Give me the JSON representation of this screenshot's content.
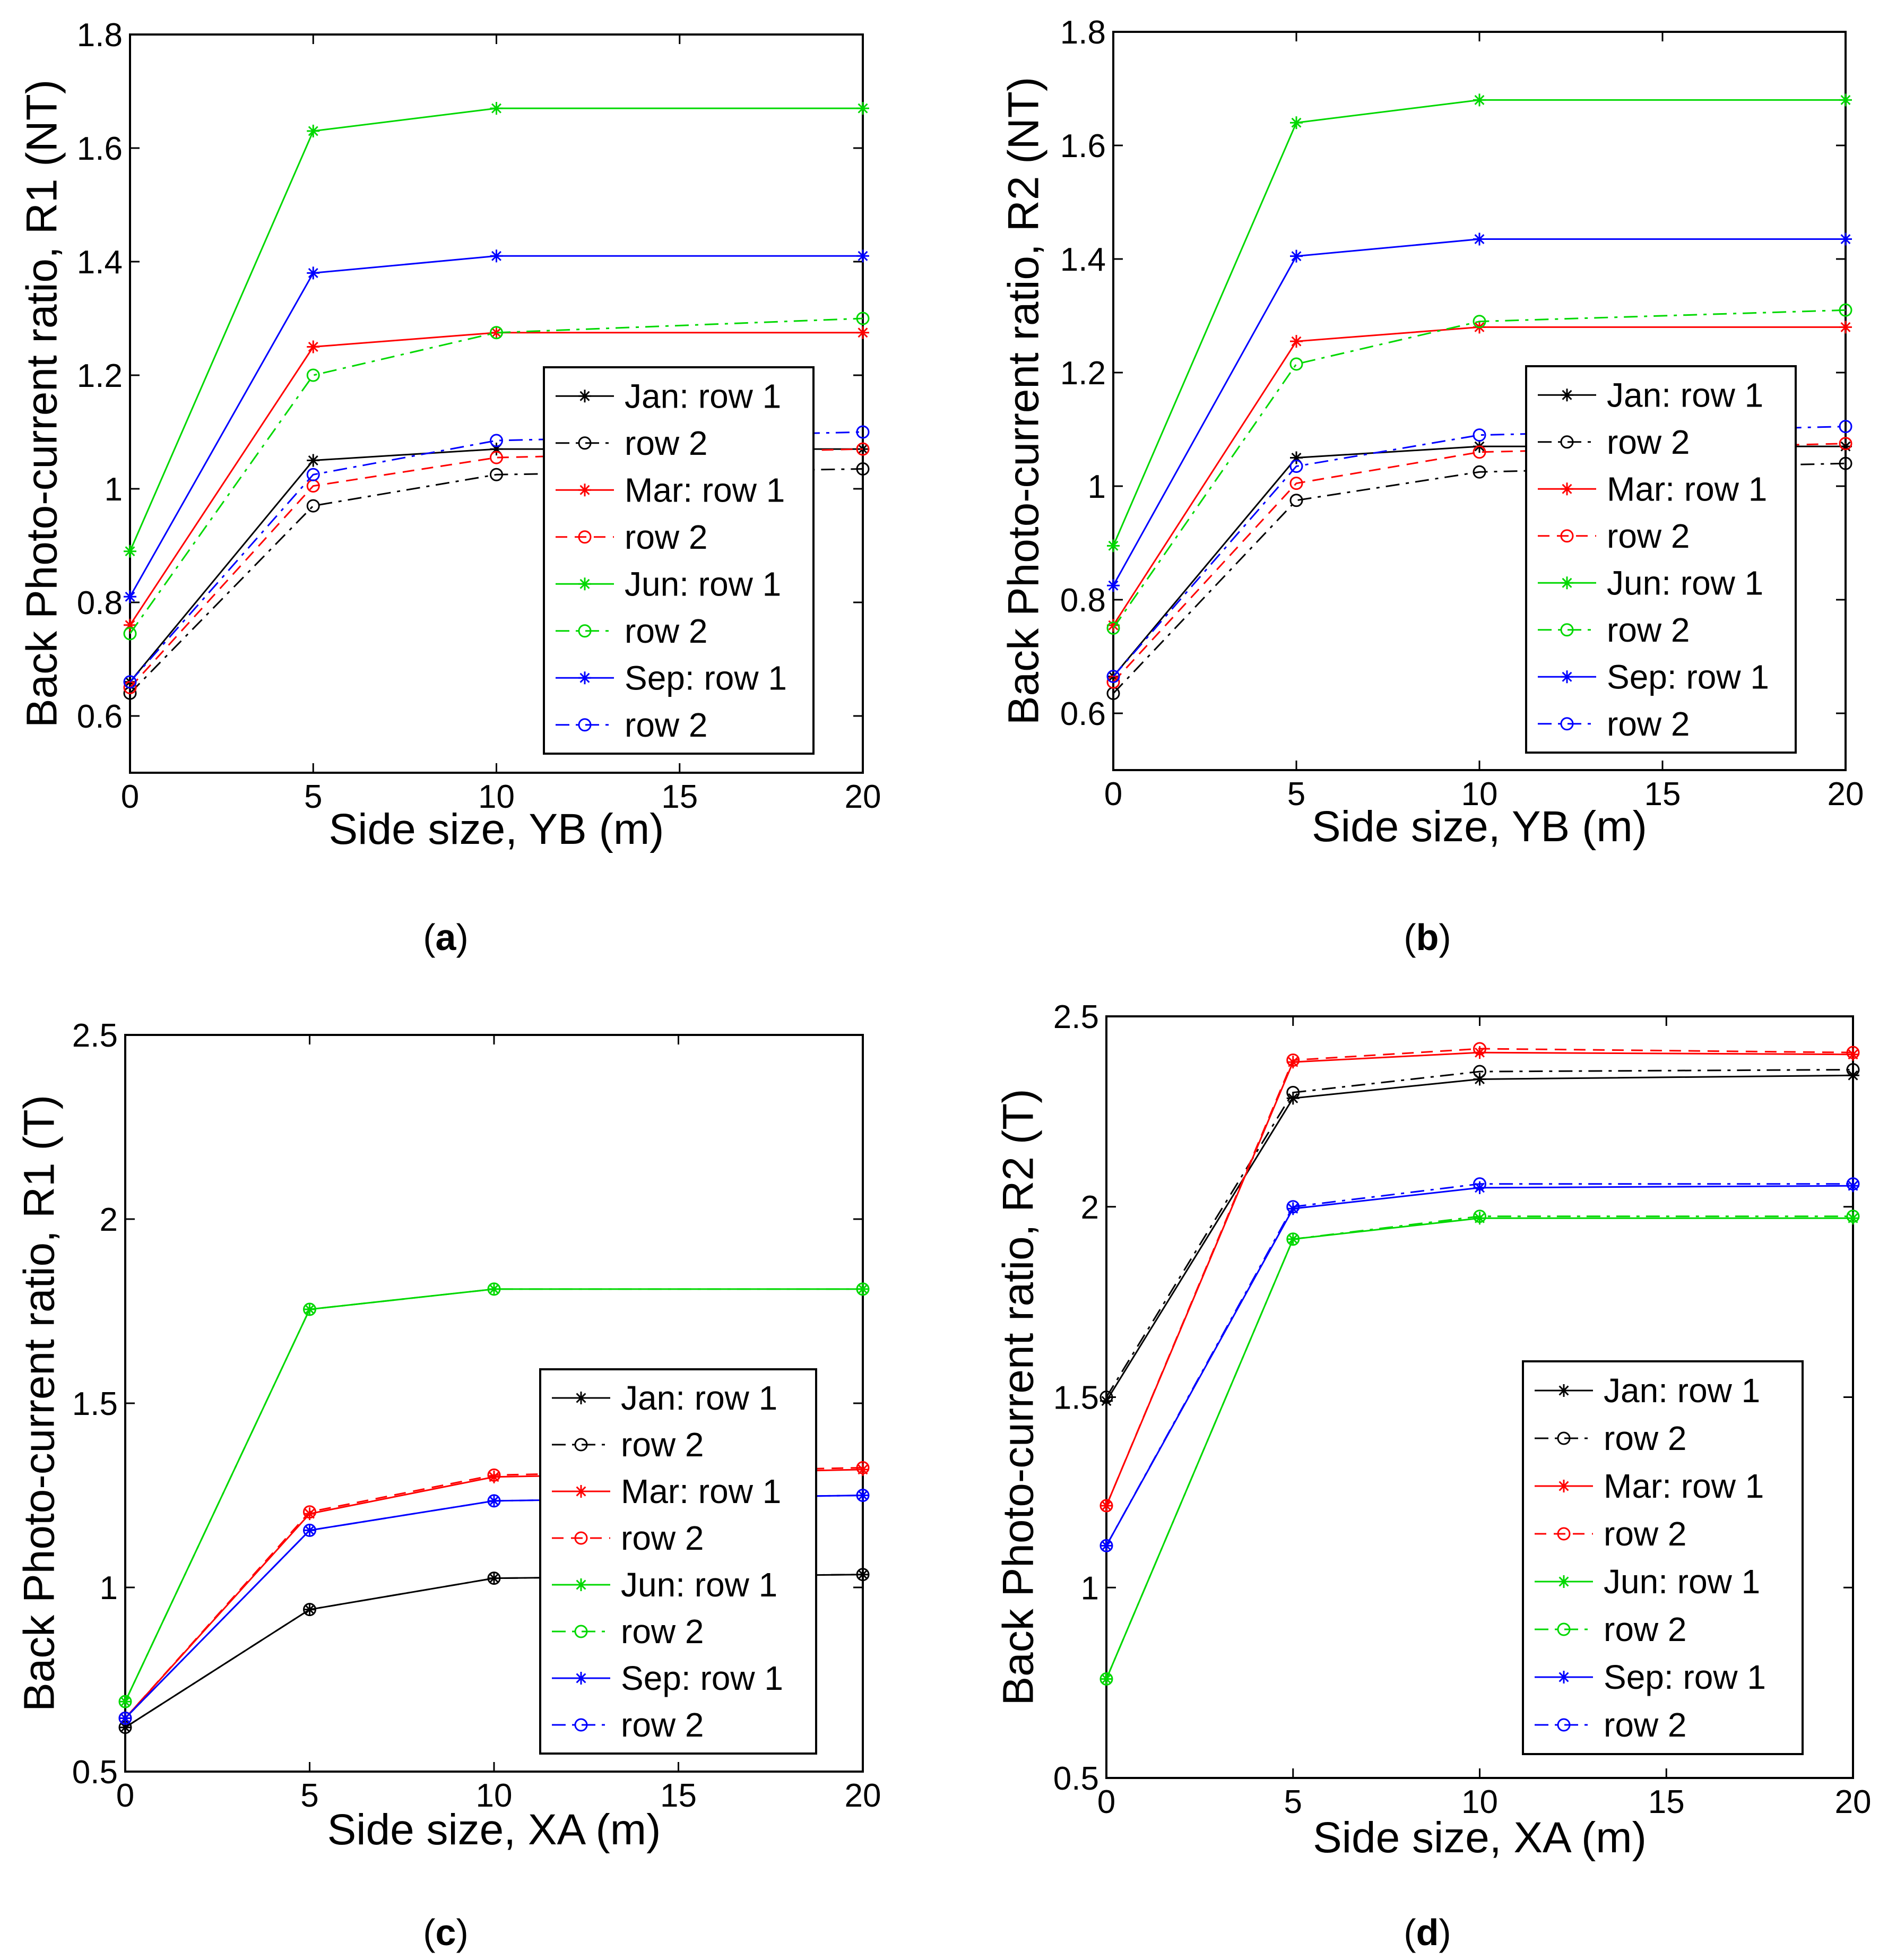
{
  "figure": {
    "panel_labels": [
      {
        "open": "(",
        "letter": "a",
        "close": ")"
      },
      {
        "open": "(",
        "letter": "b",
        "close": ")"
      },
      {
        "open": "(",
        "letter": "c",
        "close": ")"
      },
      {
        "open": "(",
        "letter": "d",
        "close": ")"
      }
    ]
  },
  "colors": {
    "jan": "#000000",
    "mar": "#ff0000",
    "jun": "#00d800",
    "sep": "#0000ff"
  },
  "chart_data": [
    {
      "type": "line",
      "panel": "a",
      "xlabel": "Side size, YB (m)",
      "ylabel": "Back Photo-current ratio, R1 (NT)",
      "x": [
        0,
        5,
        10,
        20
      ],
      "xlim": [
        0,
        20
      ],
      "xticks": [
        0,
        5,
        10,
        15,
        20
      ],
      "ylim": [
        0.5,
        1.8
      ],
      "yticks": [
        0.6,
        0.8,
        1,
        1.2,
        1.4,
        1.6,
        1.8
      ],
      "ytick_labels": [
        "0.6",
        "0.8",
        "1",
        "1.2",
        "1.4",
        "1.6",
        "1.8"
      ],
      "legend": {
        "position": "lower-right"
      },
      "series": [
        {
          "name": "Jan: row 1",
          "color": "#000000",
          "marker": "star",
          "dash": "solid",
          "values": [
            0.66,
            1.05,
            1.07,
            1.07
          ]
        },
        {
          "name": "row 2",
          "color": "#000000",
          "marker": "circle",
          "dash": "dashdot",
          "values": [
            0.64,
            0.97,
            1.025,
            1.035
          ]
        },
        {
          "name": "Mar: row 1",
          "color": "#ff0000",
          "marker": "star",
          "dash": "solid",
          "values": [
            0.76,
            1.25,
            1.275,
            1.275
          ]
        },
        {
          "name": "row 2",
          "color": "#ff0000",
          "marker": "circle",
          "dash": "dashed",
          "values": [
            0.65,
            1.005,
            1.055,
            1.07
          ]
        },
        {
          "name": "Jun: row 1",
          "color": "#00d800",
          "marker": "star",
          "dash": "solid",
          "values": [
            0.89,
            1.63,
            1.67,
            1.67
          ]
        },
        {
          "name": "row 2",
          "color": "#00d800",
          "marker": "circle",
          "dash": "dashdot",
          "values": [
            0.745,
            1.2,
            1.275,
            1.3
          ]
        },
        {
          "name": "Sep: row 1",
          "color": "#0000ff",
          "marker": "star",
          "dash": "solid",
          "values": [
            0.81,
            1.38,
            1.41,
            1.41
          ]
        },
        {
          "name": "row 2",
          "color": "#0000ff",
          "marker": "circle",
          "dash": "dashdot",
          "values": [
            0.66,
            1.025,
            1.085,
            1.1
          ]
        }
      ]
    },
    {
      "type": "line",
      "panel": "b",
      "xlabel": "Side size, YB (m)",
      "ylabel": "Back Photo-current ratio, R2 (NT)",
      "x": [
        0,
        5,
        10,
        20
      ],
      "xlim": [
        0,
        20
      ],
      "xticks": [
        0,
        5,
        10,
        15,
        20
      ],
      "ylim": [
        0.5,
        1.8
      ],
      "yticks": [
        0.6,
        0.8,
        1,
        1.2,
        1.4,
        1.6,
        1.8
      ],
      "ytick_labels": [
        "0.6",
        "0.8",
        "1",
        "1.2",
        "1.4",
        "1.6",
        "1.8"
      ],
      "legend": {
        "position": "lower-right"
      },
      "series": [
        {
          "name": "Jan: row 1",
          "color": "#000000",
          "marker": "star",
          "dash": "solid",
          "values": [
            0.665,
            1.05,
            1.07,
            1.07
          ]
        },
        {
          "name": "row 2",
          "color": "#000000",
          "marker": "circle",
          "dash": "dashdot",
          "values": [
            0.635,
            0.975,
            1.025,
            1.04
          ]
        },
        {
          "name": "Mar: row 1",
          "color": "#ff0000",
          "marker": "star",
          "dash": "solid",
          "values": [
            0.755,
            1.255,
            1.28,
            1.28
          ]
        },
        {
          "name": "row 2",
          "color": "#ff0000",
          "marker": "circle",
          "dash": "dashed",
          "values": [
            0.655,
            1.005,
            1.06,
            1.075
          ]
        },
        {
          "name": "Jun: row 1",
          "color": "#00d800",
          "marker": "star",
          "dash": "solid",
          "values": [
            0.895,
            1.64,
            1.68,
            1.68
          ]
        },
        {
          "name": "row 2",
          "color": "#00d800",
          "marker": "circle",
          "dash": "dashdot",
          "values": [
            0.75,
            1.215,
            1.29,
            1.31
          ]
        },
        {
          "name": "Sep: row 1",
          "color": "#0000ff",
          "marker": "star",
          "dash": "solid",
          "values": [
            0.825,
            1.405,
            1.435,
            1.435
          ]
        },
        {
          "name": "row 2",
          "color": "#0000ff",
          "marker": "circle",
          "dash": "dashdot",
          "values": [
            0.665,
            1.035,
            1.09,
            1.105
          ]
        }
      ]
    },
    {
      "type": "line",
      "panel": "c",
      "xlabel": "Side size, XA (m)",
      "ylabel": "Back Photo-current ratio, R1 (T)",
      "x": [
        0,
        5,
        10,
        20
      ],
      "xlim": [
        0,
        20
      ],
      "xticks": [
        0,
        5,
        10,
        15,
        20
      ],
      "ylim": [
        0.5,
        2.5
      ],
      "yticks": [
        0.5,
        1,
        1.5,
        2,
        2.5
      ],
      "ytick_labels": [
        "0.5",
        "1",
        "1.5",
        "2",
        "2.5"
      ],
      "legend": {
        "position": "lower-right"
      },
      "series": [
        {
          "name": "Jan: row 1",
          "color": "#000000",
          "marker": "star",
          "dash": "solid",
          "values": [
            0.62,
            0.94,
            1.025,
            1.035
          ]
        },
        {
          "name": "row 2",
          "color": "#000000",
          "marker": "circle",
          "dash": "dashdot",
          "values": [
            0.62,
            0.94,
            1.025,
            1.035
          ]
        },
        {
          "name": "Mar: row 1",
          "color": "#ff0000",
          "marker": "star",
          "dash": "solid",
          "values": [
            0.645,
            1.2,
            1.3,
            1.32
          ]
        },
        {
          "name": "row 2",
          "color": "#ff0000",
          "marker": "circle",
          "dash": "dashed",
          "values": [
            0.645,
            1.205,
            1.305,
            1.325
          ]
        },
        {
          "name": "Jun: row 1",
          "color": "#00d800",
          "marker": "star",
          "dash": "solid",
          "values": [
            0.69,
            1.755,
            1.81,
            1.81
          ]
        },
        {
          "name": "row 2",
          "color": "#00d800",
          "marker": "circle",
          "dash": "dashdot",
          "values": [
            0.69,
            1.755,
            1.81,
            1.81
          ]
        },
        {
          "name": "Sep: row 1",
          "color": "#0000ff",
          "marker": "star",
          "dash": "solid",
          "values": [
            0.645,
            1.155,
            1.235,
            1.25
          ]
        },
        {
          "name": "row 2",
          "color": "#0000ff",
          "marker": "circle",
          "dash": "dashdot",
          "values": [
            0.645,
            1.155,
            1.235,
            1.25
          ]
        }
      ]
    },
    {
      "type": "line",
      "panel": "d",
      "xlabel": "Side size, XA (m)",
      "ylabel": "Back Photo-current ratio, R2 (T)",
      "x": [
        0,
        5,
        10,
        20
      ],
      "xlim": [
        0,
        20
      ],
      "xticks": [
        0,
        5,
        10,
        15,
        20
      ],
      "ylim": [
        0.5,
        2.5
      ],
      "yticks": [
        0.5,
        1,
        1.5,
        2,
        2.5
      ],
      "ytick_labels": [
        "0.5",
        "1",
        "1.5",
        "2",
        "2.5"
      ],
      "legend": {
        "position": "lower-right"
      },
      "series": [
        {
          "name": "Jan: row 1",
          "color": "#000000",
          "marker": "star",
          "dash": "solid",
          "values": [
            1.49,
            2.285,
            2.335,
            2.345
          ]
        },
        {
          "name": "row 2",
          "color": "#000000",
          "marker": "circle",
          "dash": "dashdot",
          "values": [
            1.5,
            2.3,
            2.355,
            2.36
          ]
        },
        {
          "name": "Mar: row 1",
          "color": "#ff0000",
          "marker": "star",
          "dash": "solid",
          "values": [
            1.215,
            2.38,
            2.405,
            2.4
          ]
        },
        {
          "name": "row 2",
          "color": "#ff0000",
          "marker": "circle",
          "dash": "dashed",
          "values": [
            1.215,
            2.385,
            2.415,
            2.405
          ]
        },
        {
          "name": "Jun: row 1",
          "color": "#00d800",
          "marker": "star",
          "dash": "solid",
          "values": [
            0.76,
            1.915,
            1.97,
            1.97
          ]
        },
        {
          "name": "row 2",
          "color": "#00d800",
          "marker": "circle",
          "dash": "dashdot",
          "values": [
            0.76,
            1.915,
            1.975,
            1.975
          ]
        },
        {
          "name": "Sep: row 1",
          "color": "#0000ff",
          "marker": "star",
          "dash": "solid",
          "values": [
            1.11,
            1.995,
            2.05,
            2.055
          ]
        },
        {
          "name": "row 2",
          "color": "#0000ff",
          "marker": "circle",
          "dash": "dashdot",
          "values": [
            1.11,
            2.0,
            2.06,
            2.06
          ]
        }
      ]
    }
  ]
}
